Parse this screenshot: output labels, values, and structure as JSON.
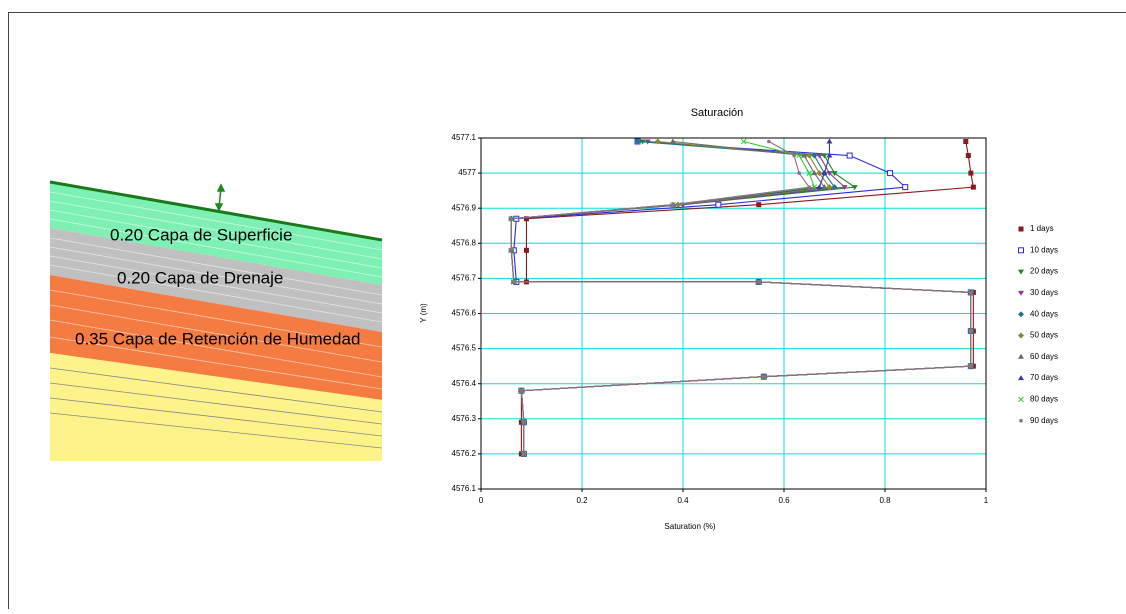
{
  "diagram": {
    "layers": [
      {
        "label": "0.20 Capa de Superficie"
      },
      {
        "label": "0.20 Capa de Drenaje"
      },
      {
        "label": "0.35 Capa de Retención de Humedad"
      }
    ]
  },
  "chart_data": {
    "type": "line",
    "title": "Saturación",
    "x_label": "Saturation (%)",
    "y_label": "Y (m)",
    "xlim": [
      0,
      1
    ],
    "xticks": [
      0,
      0.2,
      0.4,
      0.6,
      0.8,
      1
    ],
    "ylim": [
      4576.1,
      4577.1
    ],
    "yticks": [
      4576.1,
      4576.2,
      4576.3,
      4576.4,
      4576.5,
      4576.6,
      4576.7,
      4576.8,
      4576.9,
      4577,
      4577.1
    ],
    "grid": true,
    "legend": "right",
    "y": [
      4577.09,
      4577.05,
      4577.0,
      4576.96,
      4576.91,
      4576.87,
      4576.78,
      4576.69,
      4576.69,
      4576.66,
      4576.55,
      4576.45,
      4576.42,
      4576.38,
      4576.29,
      4576.2
    ],
    "series": [
      {
        "name": "1 days",
        "color": "#8b1a1a",
        "marker": "square",
        "values": [
          0.96,
          0.965,
          0.97,
          0.975,
          0.55,
          0.09,
          0.09,
          0.09,
          0.55,
          0.975,
          0.975,
          0.975,
          0.56,
          0.08,
          0.08,
          0.08
        ]
      },
      {
        "name": "10 days",
        "color": "#2a2ae0",
        "marker": "open-square",
        "values": [
          0.31,
          0.73,
          0.81,
          0.84,
          0.47,
          0.07,
          0.065,
          0.07,
          0.55,
          0.97,
          0.97,
          0.97,
          0.56,
          0.08,
          0.085,
          0.085
        ]
      },
      {
        "name": "20 days",
        "color": "#1a8a1a",
        "marker": "triangle-down",
        "values": [
          0.32,
          0.68,
          0.7,
          0.74,
          0.4,
          0.06,
          0.06,
          0.065,
          0.55,
          0.97,
          0.97,
          0.97,
          0.56,
          0.08,
          0.085,
          0.085
        ]
      },
      {
        "name": "30 days",
        "color": "#8a3a9a",
        "marker": "triangle-down",
        "values": [
          0.33,
          0.67,
          0.69,
          0.72,
          0.4,
          0.06,
          0.06,
          0.065,
          0.55,
          0.97,
          0.97,
          0.97,
          0.56,
          0.08,
          0.085,
          0.085
        ]
      },
      {
        "name": "40 days",
        "color": "#1a7a8a",
        "marker": "diamond",
        "values": [
          0.31,
          0.66,
          0.68,
          0.7,
          0.39,
          0.06,
          0.06,
          0.065,
          0.55,
          0.97,
          0.97,
          0.97,
          0.56,
          0.08,
          0.085,
          0.085
        ]
      },
      {
        "name": "50 days",
        "color": "#8a8a2a",
        "marker": "diamond",
        "values": [
          0.35,
          0.65,
          0.67,
          0.69,
          0.39,
          0.06,
          0.06,
          0.065,
          0.55,
          0.97,
          0.97,
          0.97,
          0.56,
          0.08,
          0.085,
          0.085
        ]
      },
      {
        "name": "60 days",
        "color": "#6a6a6a",
        "marker": "triangle-up",
        "values": [
          0.38,
          0.64,
          0.66,
          0.68,
          0.38,
          0.06,
          0.06,
          0.065,
          0.55,
          0.97,
          0.97,
          0.97,
          0.56,
          0.08,
          0.085,
          0.085
        ]
      },
      {
        "name": "70 days",
        "color": "#3a3aaa",
        "marker": "triangle-up",
        "values": [
          0.69,
          0.69,
          0.68,
          0.67,
          0.38,
          0.06,
          0.06,
          0.065,
          0.55,
          0.97,
          0.97,
          0.97,
          0.56,
          0.08,
          0.085,
          0.085
        ]
      },
      {
        "name": "80 days",
        "color": "#33cc33",
        "marker": "cross",
        "values": [
          0.52,
          0.63,
          0.65,
          0.66,
          0.38,
          0.06,
          0.06,
          0.065,
          0.55,
          0.97,
          0.97,
          0.97,
          0.56,
          0.08,
          0.085,
          0.085
        ]
      },
      {
        "name": "90 days",
        "color": "#9a6a8a",
        "marker": "dot",
        "values": [
          0.57,
          0.62,
          0.63,
          0.65,
          0.38,
          0.06,
          0.06,
          0.065,
          0.55,
          0.97,
          0.97,
          0.97,
          0.56,
          0.08,
          0.085,
          0.085
        ]
      }
    ]
  }
}
